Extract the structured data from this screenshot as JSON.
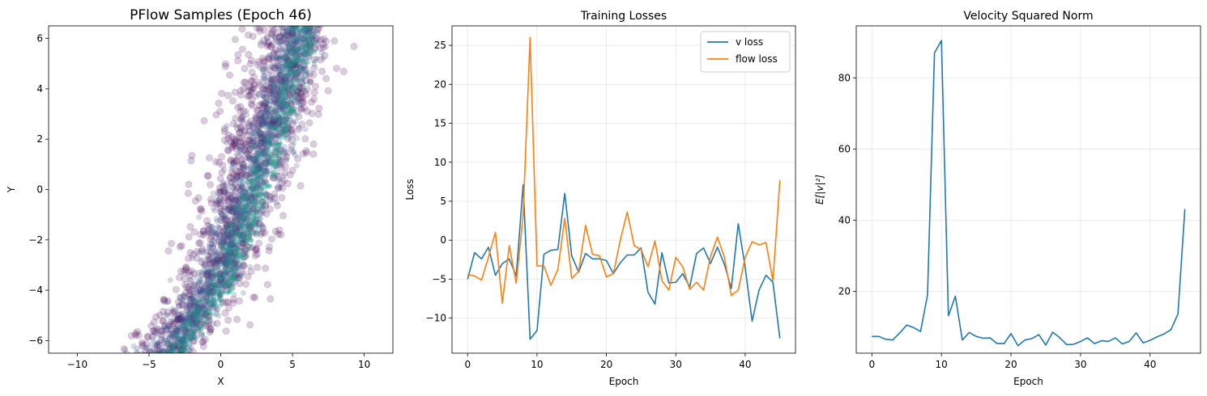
{
  "chart_data": [
    {
      "type": "scatter",
      "title": "PFlow Samples (Epoch 46)",
      "xlabel": "X",
      "ylabel": "Y",
      "xlim": [
        -12,
        12
      ],
      "ylim": [
        -6.5,
        6.5
      ],
      "xticks": [
        "−10",
        "−5",
        "0",
        "5",
        "10"
      ],
      "yticks": [
        "−6",
        "−4",
        "−2",
        "0",
        "2",
        "4",
        "6"
      ],
      "grid": false,
      "colors": {
        "outer": "#440154",
        "mid": "#3b528b",
        "inner": "#21918c",
        "core": "#1fa187"
      },
      "distribution": {
        "description_hidden": true,
        "y_range": [
          -6.5,
          6.5
        ],
        "center_at_y": [
          [
            -6,
            -3.5
          ],
          [
            -4,
            -1.0
          ],
          [
            -2,
            0.4
          ],
          [
            0,
            1.6
          ],
          [
            2,
            2.9
          ],
          [
            4,
            3.9
          ],
          [
            6,
            5.0
          ]
        ],
        "half_width_at_y": [
          [
            -6,
            3.5
          ],
          [
            0,
            4.5
          ],
          [
            6,
            3.5
          ]
        ]
      }
    },
    {
      "type": "line",
      "title": "Training Losses",
      "xlabel": "Epoch",
      "ylabel": "Loss",
      "xlim": [
        -2.25,
        47.25
      ],
      "ylim": [
        -14.5,
        27.5
      ],
      "xticks": [
        "0",
        "10",
        "20",
        "30",
        "40"
      ],
      "yticks": [
        "−10",
        "−5",
        "0",
        "5",
        "10",
        "15",
        "20",
        "25"
      ],
      "grid": true,
      "legend": "top-right",
      "x": [
        0,
        1,
        2,
        3,
        4,
        5,
        6,
        7,
        8,
        9,
        10,
        11,
        12,
        13,
        14,
        15,
        16,
        17,
        18,
        19,
        20,
        21,
        22,
        23,
        24,
        25,
        26,
        27,
        28,
        29,
        30,
        31,
        32,
        33,
        34,
        35,
        36,
        37,
        38,
        39,
        40,
        41,
        42,
        43,
        44,
        45
      ],
      "series": [
        {
          "name": "v loss",
          "color": "#1f77b4",
          "values": [
            -5.0,
            -1.6,
            -2.4,
            -0.9,
            -4.5,
            -3.0,
            -2.4,
            -4.6,
            7.1,
            -12.7,
            -11.6,
            -1.8,
            -1.3,
            -1.2,
            6.0,
            -2.0,
            -4.1,
            -1.7,
            -2.4,
            -2.4,
            -2.6,
            -4.3,
            -2.9,
            -1.9,
            -1.9,
            -1.0,
            -6.7,
            -8.2,
            -1.6,
            -5.5,
            -5.4,
            -4.3,
            -6.0,
            -1.7,
            -1.0,
            -3.0,
            -0.9,
            -3.1,
            -6.2,
            2.1,
            -3.5,
            -10.4,
            -6.4,
            -4.5,
            -5.4,
            -12.6
          ]
        },
        {
          "name": "flow loss",
          "color": "#ff7f0e",
          "values": [
            -4.4,
            -4.6,
            -5.1,
            -2.2,
            1.0,
            -8.1,
            -0.7,
            -5.5,
            3.2,
            26.0,
            -3.3,
            -3.3,
            -5.8,
            -3.8,
            2.8,
            -4.9,
            -4.0,
            1.9,
            -1.8,
            -2.0,
            -4.7,
            -4.3,
            0.0,
            3.6,
            -0.7,
            -1.2,
            -3.4,
            -0.1,
            -5.2,
            -6.4,
            -2.2,
            -3.4,
            -6.3,
            -5.4,
            -6.4,
            -2.1,
            0.4,
            -2.2,
            -7.1,
            -6.4,
            -2.2,
            -0.2,
            -0.6,
            -0.3,
            -5.2,
            7.7
          ]
        }
      ]
    },
    {
      "type": "line",
      "title": "Velocity Squared Norm",
      "xlabel": "Epoch",
      "ylabel": "E[|v|²]",
      "xlim": [
        -2.25,
        47.25
      ],
      "ylim": [
        2.6,
        94.6
      ],
      "xticks": [
        "0",
        "10",
        "20",
        "30",
        "40"
      ],
      "yticks": [
        "20",
        "40",
        "60",
        "80"
      ],
      "grid": true,
      "x": [
        0,
        1,
        2,
        3,
        4,
        5,
        6,
        7,
        8,
        9,
        10,
        11,
        12,
        13,
        14,
        15,
        16,
        17,
        18,
        19,
        20,
        21,
        22,
        23,
        24,
        25,
        26,
        27,
        28,
        29,
        30,
        31,
        32,
        33,
        34,
        35,
        36,
        37,
        38,
        39,
        40,
        41,
        42,
        43,
        44,
        45
      ],
      "series": [
        {
          "color": "#1f77b4",
          "values": [
            7.3,
            7.3,
            6.5,
            6.3,
            8.3,
            10.5,
            9.8,
            8.7,
            19.0,
            87.0,
            90.5,
            13.1,
            18.6,
            6.3,
            8.4,
            7.3,
            6.8,
            6.9,
            5.3,
            5.3,
            8.1,
            4.7,
            6.3,
            6.7,
            7.8,
            4.9,
            8.5,
            7.0,
            5.0,
            5.1,
            5.9,
            6.9,
            5.3,
            6.1,
            5.9,
            6.9,
            5.2,
            5.9,
            8.3,
            5.5,
            6.2,
            7.2,
            8.0,
            9.2,
            13.6,
            43.1
          ]
        }
      ]
    }
  ]
}
